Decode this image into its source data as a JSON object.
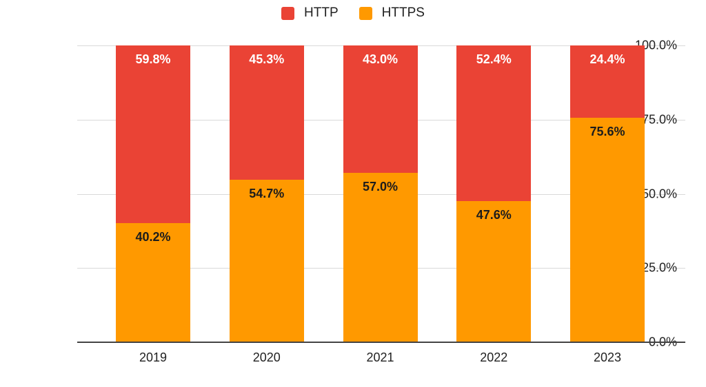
{
  "chart_data": {
    "type": "bar",
    "stacked": true,
    "title": "",
    "xlabel": "",
    "ylabel": "",
    "categories": [
      "2019",
      "2020",
      "2021",
      "2022",
      "2023"
    ],
    "series": [
      {
        "name": "HTTP",
        "color": "#EA4335",
        "label_color": "#FFFFFF",
        "values": [
          59.8,
          45.3,
          43.0,
          52.4,
          24.4
        ],
        "labels": [
          "59.8%",
          "45.3%",
          "43.0%",
          "52.4%",
          "24.4%"
        ]
      },
      {
        "name": "HTTPS",
        "color": "#FF9900",
        "label_color": "#1C1C1C",
        "values": [
          40.2,
          54.7,
          57.0,
          47.6,
          75.6
        ],
        "labels": [
          "40.2%",
          "54.7%",
          "57.0%",
          "47.6%",
          "75.6%"
        ]
      }
    ],
    "stack_order_bottom_to_top": [
      "HTTPS",
      "HTTP"
    ],
    "ylim": [
      0,
      100
    ],
    "yticks": [
      {
        "value": 0,
        "label": "0.0%"
      },
      {
        "value": 25,
        "label": "25.0%"
      },
      {
        "value": 50,
        "label": "50.0%"
      },
      {
        "value": 75,
        "label": "75.0%"
      },
      {
        "value": 100,
        "label": "100.0%"
      }
    ],
    "grid": true,
    "legend_position": "top",
    "colors": {
      "grid": "#D9D9D9",
      "axis": "#424242",
      "tick_text": "#212121"
    }
  }
}
